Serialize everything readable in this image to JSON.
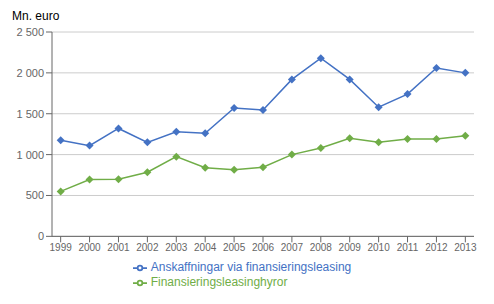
{
  "chart_data": {
    "type": "line",
    "ylabel": "Mn. euro",
    "x": [
      1999,
      2000,
      2001,
      2002,
      2003,
      2004,
      2005,
      2006,
      2007,
      2008,
      2009,
      2010,
      2011,
      2012,
      2013
    ],
    "xlim": [
      1998.7,
      2013.3
    ],
    "xticks": [
      1999,
      2000,
      2001,
      2002,
      2003,
      2004,
      2005,
      2006,
      2007,
      2008,
      2009,
      2010,
      2011,
      2012,
      2013
    ],
    "ylim": [
      0,
      2500
    ],
    "yticks": [
      0,
      500,
      {
        "value": 1000,
        "label": "1 000"
      },
      {
        "value": 1500,
        "label": "1 500"
      },
      {
        "value": 2000,
        "label": "2 000"
      },
      {
        "value": 2500,
        "label": "2 500"
      }
    ],
    "grid": true,
    "legend": "bottom",
    "series": [
      {
        "name": "Anskaffningar via finansieringsleasing",
        "color": "#4472C4",
        "marker": "diamond",
        "values": [
          1175,
          1110,
          1320,
          1150,
          1280,
          1260,
          1570,
          1545,
          1920,
          2180,
          1920,
          1580,
          1740,
          2060,
          2000
        ]
      },
      {
        "name": "Finansieringsleasinghyror",
        "color": "#70AD47",
        "marker": "diamond",
        "values": [
          550,
          695,
          700,
          785,
          975,
          840,
          815,
          845,
          1000,
          1080,
          1200,
          1150,
          1190,
          1190,
          1230
        ]
      }
    ]
  }
}
